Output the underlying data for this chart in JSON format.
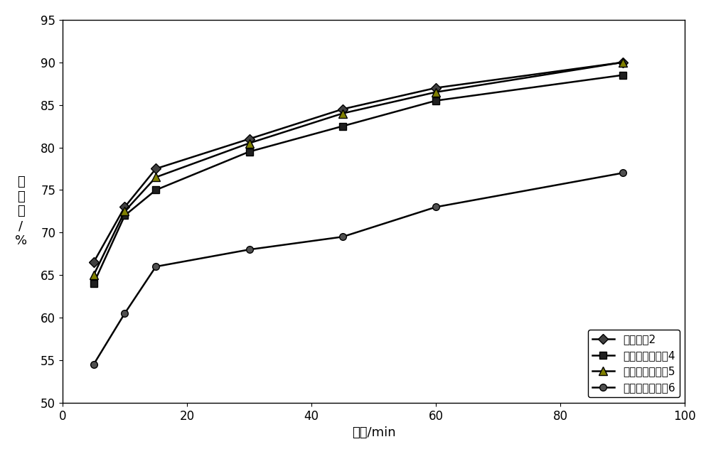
{
  "x": [
    5,
    10,
    15,
    30,
    45,
    60,
    90
  ],
  "series": [
    {
      "label": "参比制剂2",
      "y": [
        66.5,
        73.0,
        77.5,
        81.0,
        84.5,
        87.0,
        90.0
      ],
      "color": "#000000",
      "marker": "D",
      "markersize": 7,
      "markerfacecolor": "#404040",
      "zorder": 4
    },
    {
      "label": "格列美脲分散片4",
      "y": [
        64.0,
        72.0,
        75.0,
        79.5,
        82.5,
        85.5,
        88.5
      ],
      "color": "#000000",
      "marker": "s",
      "markersize": 7,
      "markerfacecolor": "#202020",
      "zorder": 3
    },
    {
      "label": "格列美脲分散片5",
      "y": [
        65.0,
        72.5,
        76.5,
        80.5,
        84.0,
        86.5,
        90.0
      ],
      "color": "#000000",
      "marker": "^",
      "markersize": 8,
      "markerfacecolor": "#808000",
      "zorder": 5
    },
    {
      "label": "格列美脲分散片6",
      "y": [
        54.5,
        60.5,
        66.0,
        68.0,
        69.5,
        73.0,
        77.0
      ],
      "color": "#000000",
      "marker": "o",
      "markersize": 7,
      "markerfacecolor": "#505050",
      "zorder": 2
    }
  ],
  "xlim": [
    0,
    100
  ],
  "ylim": [
    50,
    95
  ],
  "xticks": [
    0,
    20,
    40,
    60,
    80,
    100
  ],
  "yticks": [
    50,
    55,
    60,
    65,
    70,
    75,
    80,
    85,
    90,
    95
  ],
  "xlabel": "时间/min",
  "ylabel": "溶\n出\n度\n/\n%",
  "legend_loc": "lower right",
  "linewidth": 1.8,
  "background_color": "#ffffff",
  "font_size": 13,
  "tick_font_size": 12
}
